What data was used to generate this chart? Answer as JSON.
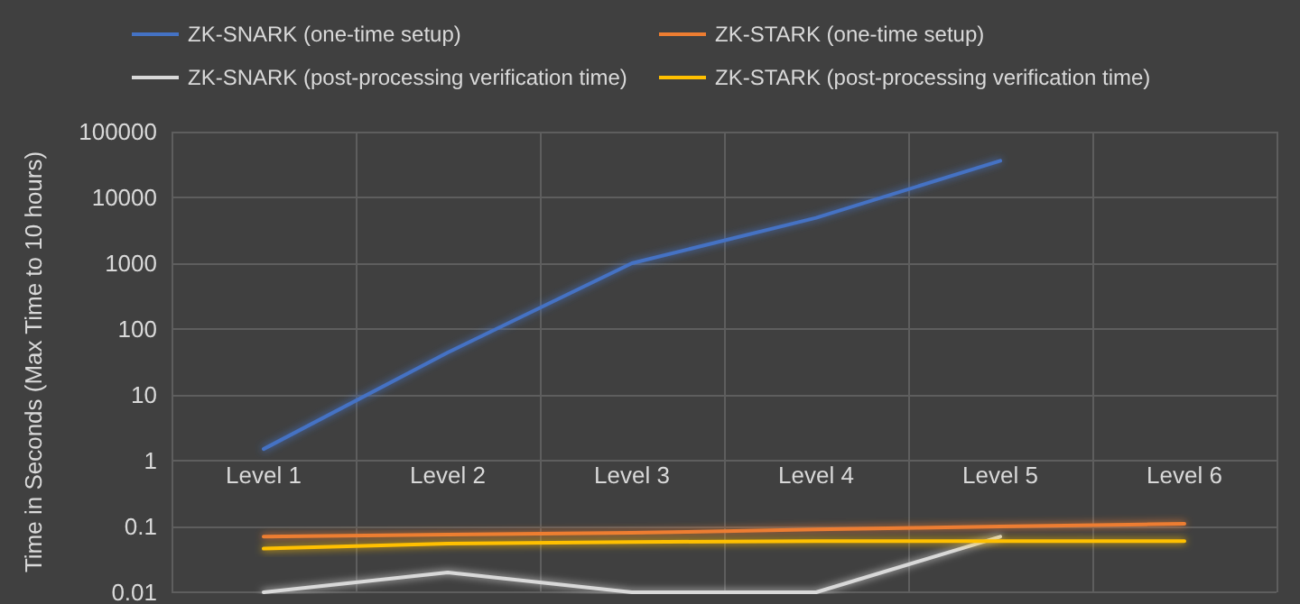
{
  "chart_data": {
    "type": "line",
    "ylabel": "Time in Seconds (Max Time to 10 hours)",
    "categories": [
      "Level 1",
      "Level 2",
      "Level 3",
      "Level 4",
      "Level 5",
      "Level 6"
    ],
    "series": [
      {
        "name": "ZK-SNARK (one-time setup)",
        "color": "#4472c4",
        "values": [
          1.5,
          44,
          1000,
          4900,
          36000,
          null
        ]
      },
      {
        "name": "ZK-STARK (one-time setup)",
        "color": "#ed7d31",
        "values": [
          0.07,
          0.075,
          0.08,
          0.09,
          0.1,
          0.11
        ]
      },
      {
        "name": "ZK-SNARK (post-processing verification time)",
        "color": "#d9d9d9",
        "values": [
          0.01,
          0.02,
          0.01,
          0.01,
          0.07,
          null
        ]
      },
      {
        "name": "ZK-STARK (post-processing verification time)",
        "color": "#ffc000",
        "values": [
          0.046,
          0.055,
          0.058,
          0.06,
          0.06,
          0.06
        ]
      }
    ],
    "ylim": [
      0.01,
      100000
    ],
    "yticks": [
      0.01,
      0.1,
      1,
      10,
      100,
      1000,
      10000,
      100000
    ],
    "log": true,
    "grid": true,
    "legend": "top",
    "marker": "none",
    "line_style": "solid"
  }
}
